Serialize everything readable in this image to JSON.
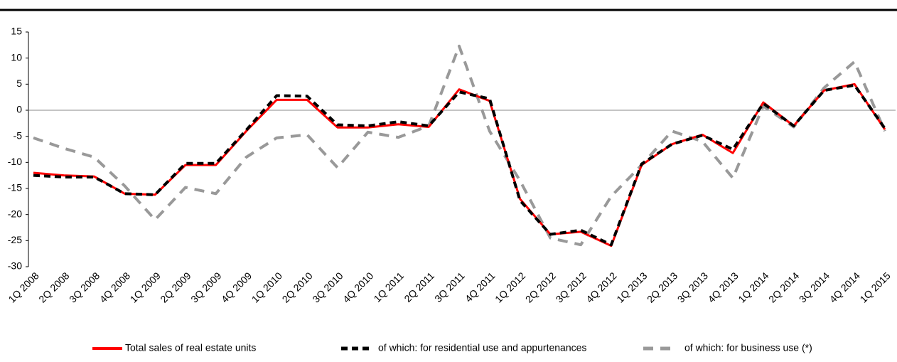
{
  "chart_data": {
    "type": "line",
    "categories": [
      "1Q 2008",
      "2Q 2008",
      "3Q 2008",
      "4Q 2008",
      "1Q 2009",
      "2Q 2009",
      "3Q 2009",
      "4Q 2009",
      "1Q 2010",
      "2Q 2010",
      "3Q 2010",
      "4Q 2010",
      "1Q 2011",
      "2Q 2011",
      "3Q 2011",
      "4Q 2011",
      "1Q 2012",
      "2Q 2012",
      "3Q 2012",
      "4Q 2012",
      "1Q 2013",
      "2Q 2013",
      "3Q 2013",
      "4Q 2013",
      "1Q 2014",
      "2Q 2014",
      "3Q 2014",
      "4Q 2014",
      "1Q 2015"
    ],
    "series": [
      {
        "name": "Total sales of real estate units",
        "color": "#ff0000",
        "values": [
          -12,
          -12.5,
          -12.7,
          -16,
          -16.2,
          -10.5,
          -10.5,
          -4,
          2,
          2,
          -3.3,
          -3.3,
          -2.7,
          -3.2,
          4,
          1.8,
          -17,
          -23.8,
          -23.3,
          -26,
          -10.5,
          -6.5,
          -4.7,
          -8.2,
          1.5,
          -3,
          3.8,
          5,
          -3.7
        ]
      },
      {
        "name": "of which: for residential use and appurtenances",
        "color": "#000000",
        "values": [
          -12.5,
          -12.8,
          -12.8,
          -16,
          -16.2,
          -10.2,
          -10.2,
          -3.8,
          2.8,
          2.7,
          -2.8,
          -3,
          -2.2,
          -3,
          3.5,
          2.2,
          -17.3,
          -23.8,
          -23,
          -25.8,
          -10.3,
          -6.5,
          -4.8,
          -7.5,
          1.3,
          -3,
          3.8,
          4.8,
          -3.5
        ]
      },
      {
        "name": "of which: for business use (*)",
        "color": "#999999",
        "values": [
          -5.3,
          -7.3,
          -9,
          -14.5,
          -21,
          -14.8,
          -16,
          -9,
          -5.3,
          -4.7,
          -11,
          -4.2,
          -5.2,
          -3,
          12.3,
          -4,
          -13.5,
          -24.5,
          -25.8,
          -16.5,
          -10.5,
          -4,
          -6,
          -13,
          0.8,
          -3.2,
          4.3,
          9.3,
          -4
        ]
      }
    ],
    "ylim": [
      -30,
      15
    ],
    "yticks": [
      -30,
      -25,
      -20,
      -15,
      -10,
      -5,
      0,
      5,
      10,
      15
    ]
  }
}
